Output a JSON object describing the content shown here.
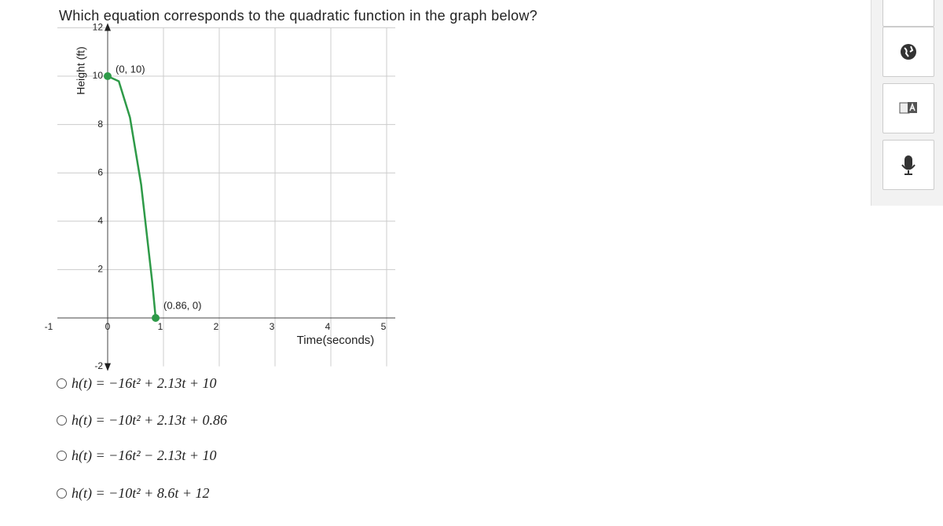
{
  "question": "Which equation corresponds to the quadratic function in the graph below?",
  "chart_data": {
    "type": "line",
    "y_label": "Height (ft)",
    "x_label": "Time(seconds)",
    "x": [
      0,
      0.2,
      0.4,
      0.6,
      0.8,
      0.86
    ],
    "series": [
      {
        "color": "#2e9a48",
        "values": [
          10,
          9.79,
          8.29,
          5.52,
          1.46,
          0
        ]
      }
    ],
    "points": [
      {
        "x": 0,
        "y": 10,
        "label": "(0, 10)"
      },
      {
        "x": 0.86,
        "y": 0,
        "label": "(0.86, 0)"
      }
    ],
    "xlim": [
      -1,
      5
    ],
    "ylim": [
      -2,
      12
    ],
    "xticks": [
      -1,
      0,
      1,
      2,
      3,
      4,
      5
    ],
    "yticks": [
      -2,
      2,
      4,
      6,
      8,
      10,
      12
    ],
    "grid": true
  },
  "options": [
    "h(t) = −16t² + 2.13t + 10",
    "h(t) = −10t² + 2.13t + 0.86",
    "h(t) = −16t² − 2.13t + 10",
    "h(t) = −10t² + 8.6t + 12"
  ]
}
